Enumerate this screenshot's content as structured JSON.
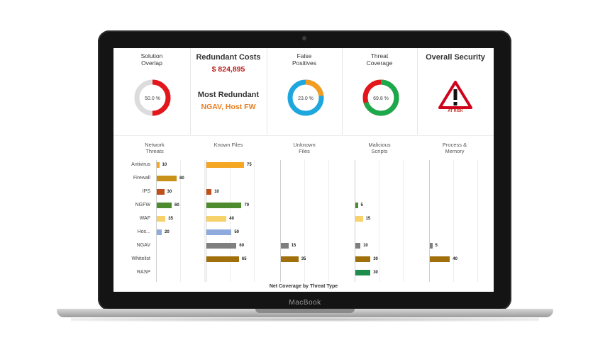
{
  "summary": {
    "solution_overlap": {
      "title": "Solution\nOverlap",
      "pct_label": "50.0 %",
      "pct": 50.0,
      "color": "#e3161b"
    },
    "redundant": {
      "title": "Redundant Costs",
      "amount": "$ 824,895",
      "most_title": "Most Redundant",
      "most_value": "NGAV, Host FW"
    },
    "false_positives": {
      "title": "False\nPositives",
      "pct_label": "23.0 %",
      "pct": 23.0,
      "color": "#f39c1f"
    },
    "threat_coverage": {
      "title": "Threat\nCoverage",
      "pct_label": "69.8 %",
      "pct": 69.8,
      "color": "#1aaa4b"
    },
    "overall_security": {
      "title": "Overall Security",
      "status": "AT RISK"
    }
  },
  "charts": {
    "network": {
      "title": "Network\nThreats"
    },
    "known": {
      "title": "Known Files"
    },
    "unknown": {
      "title": "Unknown\nFiles"
    },
    "scripts": {
      "title": "Malicious\nScripts"
    },
    "process": {
      "title": "Process &\nMemory"
    },
    "rows": [
      "Antivirus",
      "Firewall",
      "IPS",
      "NGFW",
      "WAF",
      "Hos...",
      "NGAV",
      "Whitelist",
      "RASP"
    ],
    "colors": [
      "#f5a623",
      "#c8921a",
      "#c0501b",
      "#4e8a2e",
      "#f7d16a",
      "#8faadc",
      "#7f7f7f",
      "#a0700c",
      "#1e8c4a"
    ],
    "series": [
      {
        "chart": "network",
        "values": [
          10,
          80,
          30,
          60,
          35,
          20,
          null,
          null,
          null
        ]
      },
      {
        "chart": "known",
        "values": [
          75,
          null,
          10,
          70,
          40,
          50,
          60,
          65,
          null
        ]
      },
      {
        "chart": "unknown",
        "values": [
          null,
          null,
          null,
          null,
          null,
          null,
          15,
          35,
          null
        ]
      },
      {
        "chart": "scripts",
        "values": [
          null,
          null,
          null,
          5,
          15,
          null,
          10,
          30,
          30
        ]
      },
      {
        "chart": "process",
        "values": [
          null,
          null,
          null,
          null,
          null,
          null,
          5,
          40,
          null
        ]
      }
    ],
    "footer": "Net Coverage by Threat Type"
  },
  "device": {
    "brand": "MacBook"
  }
}
